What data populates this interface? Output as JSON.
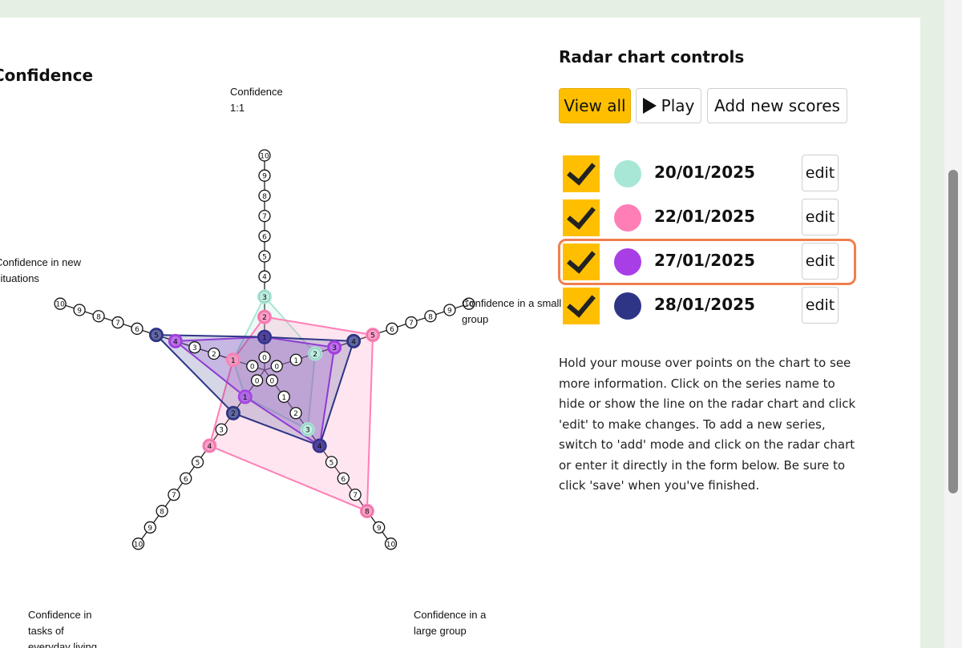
{
  "chart": {
    "title": "Confidence",
    "axes": [
      "Confidence\n1:1",
      "Confidence in a small\ngroup",
      "Confidence in a\nlarge group",
      "Confidence in\ntasks of\neveryday living",
      "Confidence in new\nsituations"
    ]
  },
  "controls": {
    "title": "Radar chart controls",
    "view_all_label": "View all",
    "play_label": "Play",
    "add_scores_label": "Add new scores",
    "edit_label": "edit",
    "help_text": "Hold your mouse over points on the chart to see more information. Click on the series name to hide or show the line on the radar chart and click 'edit' to make changes. To add a new series, switch to 'add' mode and click on the radar chart or enter it directly in the form below. Be sure to click 'save' when you've finished."
  },
  "series": [
    {
      "date": "20/01/2025",
      "color": "#a8e6d6"
    },
    {
      "date": "22/01/2025",
      "color": "#ff7eb6"
    },
    {
      "date": "27/01/2025",
      "color": "#a73ee6"
    },
    {
      "date": "28/01/2025",
      "color": "#2e3586"
    }
  ],
  "chart_data": {
    "type": "radar",
    "title": "Confidence",
    "axes": [
      "Confidence 1:1",
      "Confidence in a small group",
      "Confidence in a large group",
      "Confidence in tasks of everyday living",
      "Confidence in new situations"
    ],
    "scale": [
      0,
      10
    ],
    "series": [
      {
        "name": "20/01/2025",
        "color": "#a8e6d6",
        "values": [
          3,
          2,
          3,
          1,
          1
        ],
        "visible": true
      },
      {
        "name": "22/01/2025",
        "color": "#ff7eb6",
        "values": [
          2,
          5,
          8,
          4,
          1
        ],
        "visible": true
      },
      {
        "name": "27/01/2025",
        "color": "#a73ee6",
        "values": [
          1,
          3,
          4,
          1,
          4
        ],
        "visible": true
      },
      {
        "name": "28/01/2025",
        "color": "#2e3586",
        "values": [
          1,
          4,
          4,
          2,
          5
        ],
        "visible": true
      }
    ]
  }
}
